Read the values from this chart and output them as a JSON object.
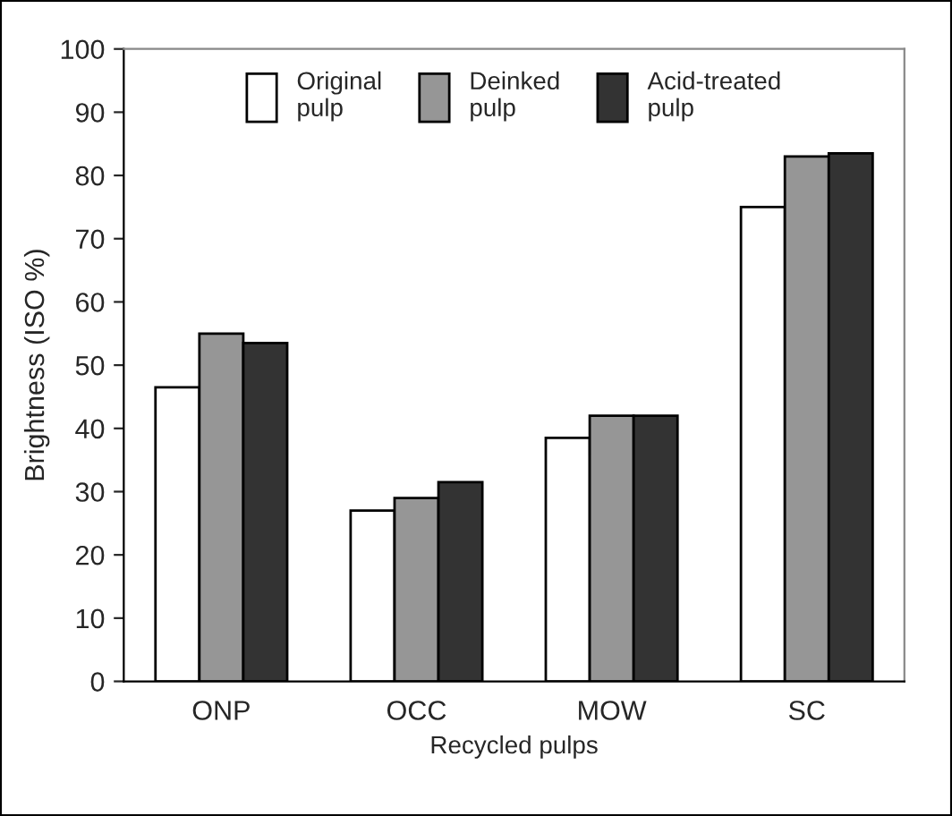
{
  "chart_data": {
    "type": "bar",
    "xlabel": "Recycled pulps",
    "ylabel": "Brightness (ISO %)",
    "categories": [
      "ONP",
      "OCC",
      "MOW",
      "SC"
    ],
    "series": [
      {
        "name": "Original\npulp",
        "color": "#ffffff",
        "values": [
          46.5,
          27,
          38.5,
          75
        ]
      },
      {
        "name": "Deinked\npulp",
        "color": "#969696",
        "values": [
          55,
          29,
          42,
          83
        ]
      },
      {
        "name": "Acid-treated\npulp",
        "color": "#333333",
        "values": [
          53.5,
          31.5,
          42,
          83.5
        ]
      }
    ],
    "ylim": [
      0,
      100
    ],
    "yticks": [
      0,
      10,
      20,
      30,
      40,
      50,
      60,
      70,
      80,
      90,
      100
    ],
    "grid": false,
    "legend": "top"
  }
}
